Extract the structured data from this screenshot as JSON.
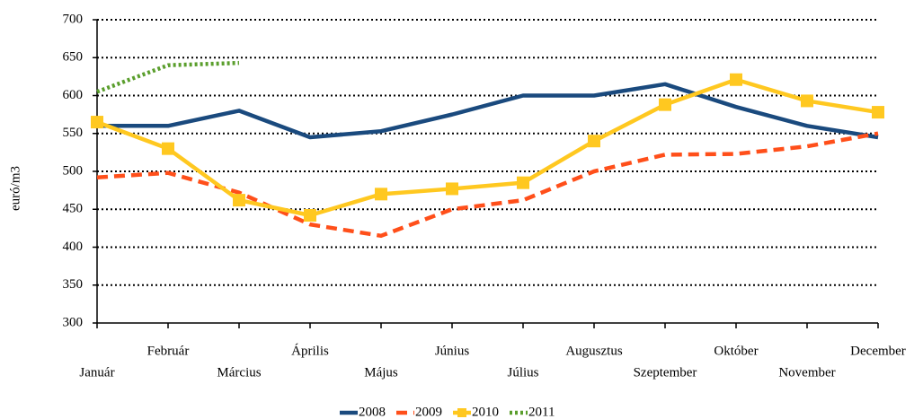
{
  "chart_data": {
    "type": "line",
    "ylabel": "euró/m3",
    "categories": [
      "Január",
      "Február",
      "Március",
      "Április",
      "Május",
      "Június",
      "Július",
      "Augusztus",
      "Szeptember",
      "Október",
      "November",
      "December"
    ],
    "series": [
      {
        "name": "2008",
        "color": "#1a4a7e",
        "style": "solid",
        "values": [
          560,
          560,
          580,
          545,
          553,
          575,
          600,
          600,
          615,
          585,
          560,
          545
        ]
      },
      {
        "name": "2009",
        "color": "#ff4f1a",
        "style": "dashed",
        "values": [
          492,
          498,
          472,
          430,
          415,
          450,
          462,
          500,
          522,
          523,
          533,
          550
        ]
      },
      {
        "name": "2010",
        "color": "#ffc820",
        "style": "solid",
        "marker": "square",
        "values": [
          565,
          530,
          462,
          442,
          470,
          477,
          485,
          540,
          588,
          621,
          593,
          578
        ]
      },
      {
        "name": "2011",
        "color": "#5a9e2c",
        "style": "dotted",
        "values": [
          605,
          640,
          643,
          null,
          null,
          null,
          null,
          null,
          null,
          null,
          null,
          null
        ]
      }
    ],
    "ylim": [
      300,
      700
    ],
    "yticks": [
      300,
      350,
      400,
      450,
      500,
      550,
      600,
      650,
      700
    ],
    "grid": true,
    "legend": "bottom"
  }
}
